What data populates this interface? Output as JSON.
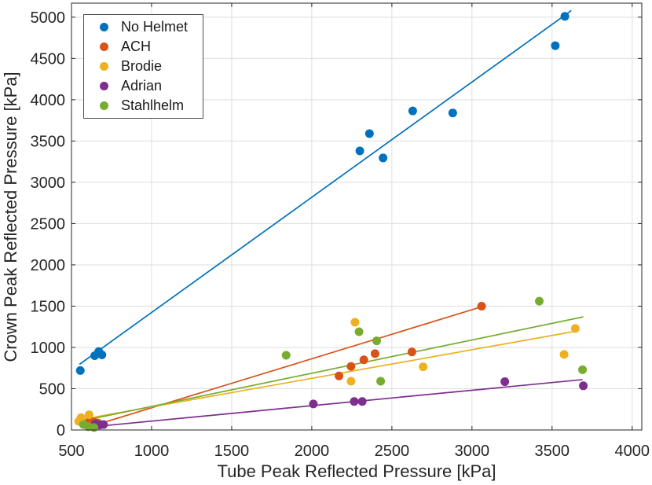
{
  "figure": {
    "background": "#ffffff"
  },
  "chart_data": {
    "type": "scatter",
    "title": "",
    "xlabel": "Tube Peak Reflected Pressure [kPa]",
    "ylabel": "Crown Peak Reflected Pressure [kPa]",
    "xlim": [
      500,
      4060
    ],
    "ylim": [
      0,
      5170
    ],
    "xticks": [
      500,
      1000,
      1500,
      2000,
      2500,
      3000,
      3500,
      4000
    ],
    "yticks": [
      0,
      500,
      1000,
      1500,
      2000,
      2500,
      3000,
      3500,
      4000,
      4500,
      5000
    ],
    "grid": true,
    "grid_color": "#dedede",
    "axis_color": "#262626",
    "legend_position": "top-left",
    "series": [
      {
        "name": "No Helmet",
        "color": "#0072BD",
        "points": [
          [
            555,
            720
          ],
          [
            645,
            900
          ],
          [
            670,
            950
          ],
          [
            690,
            910
          ],
          [
            2300,
            3380
          ],
          [
            2360,
            3590
          ],
          [
            2445,
            3295
          ],
          [
            2630,
            3865
          ],
          [
            2880,
            3840
          ],
          [
            3520,
            4655
          ],
          [
            3580,
            5010
          ]
        ],
        "trend": [
          [
            550,
            795
          ],
          [
            3620,
            5080
          ]
        ]
      },
      {
        "name": "ACH",
        "color": "#D95319",
        "points": [
          [
            615,
            110
          ],
          [
            640,
            95
          ],
          [
            665,
            85
          ],
          [
            2170,
            655
          ],
          [
            2245,
            770
          ],
          [
            2325,
            850
          ],
          [
            2395,
            925
          ],
          [
            2625,
            945
          ],
          [
            3060,
            1500
          ]
        ],
        "trend": [
          [
            640,
            55
          ],
          [
            3065,
            1495
          ]
        ]
      },
      {
        "name": "Brodie",
        "color": "#EDB120",
        "points": [
          [
            545,
            105
          ],
          [
            560,
            150
          ],
          [
            610,
            185
          ],
          [
            2245,
            590
          ],
          [
            2270,
            1305
          ],
          [
            2695,
            765
          ],
          [
            3575,
            915
          ],
          [
            3645,
            1230
          ]
        ],
        "trend": [
          [
            525,
            115
          ],
          [
            3630,
            1190
          ]
        ]
      },
      {
        "name": "Adrian",
        "color": "#7E2F8E",
        "points": [
          [
            650,
            75
          ],
          [
            675,
            60
          ],
          [
            700,
            65
          ],
          [
            2010,
            315
          ],
          [
            2265,
            345
          ],
          [
            2315,
            345
          ],
          [
            3205,
            585
          ],
          [
            3695,
            535
          ]
        ],
        "trend": [
          [
            640,
            40
          ],
          [
            3690,
            610
          ]
        ]
      },
      {
        "name": "Stahlhelm",
        "color": "#77AC30",
        "points": [
          [
            575,
            65
          ],
          [
            605,
            40
          ],
          [
            640,
            30
          ],
          [
            1840,
            905
          ],
          [
            2295,
            1190
          ],
          [
            2405,
            1080
          ],
          [
            2430,
            590
          ],
          [
            3420,
            1560
          ],
          [
            3690,
            730
          ]
        ],
        "trend": [
          [
            578,
            115
          ],
          [
            3695,
            1370
          ]
        ]
      }
    ]
  }
}
